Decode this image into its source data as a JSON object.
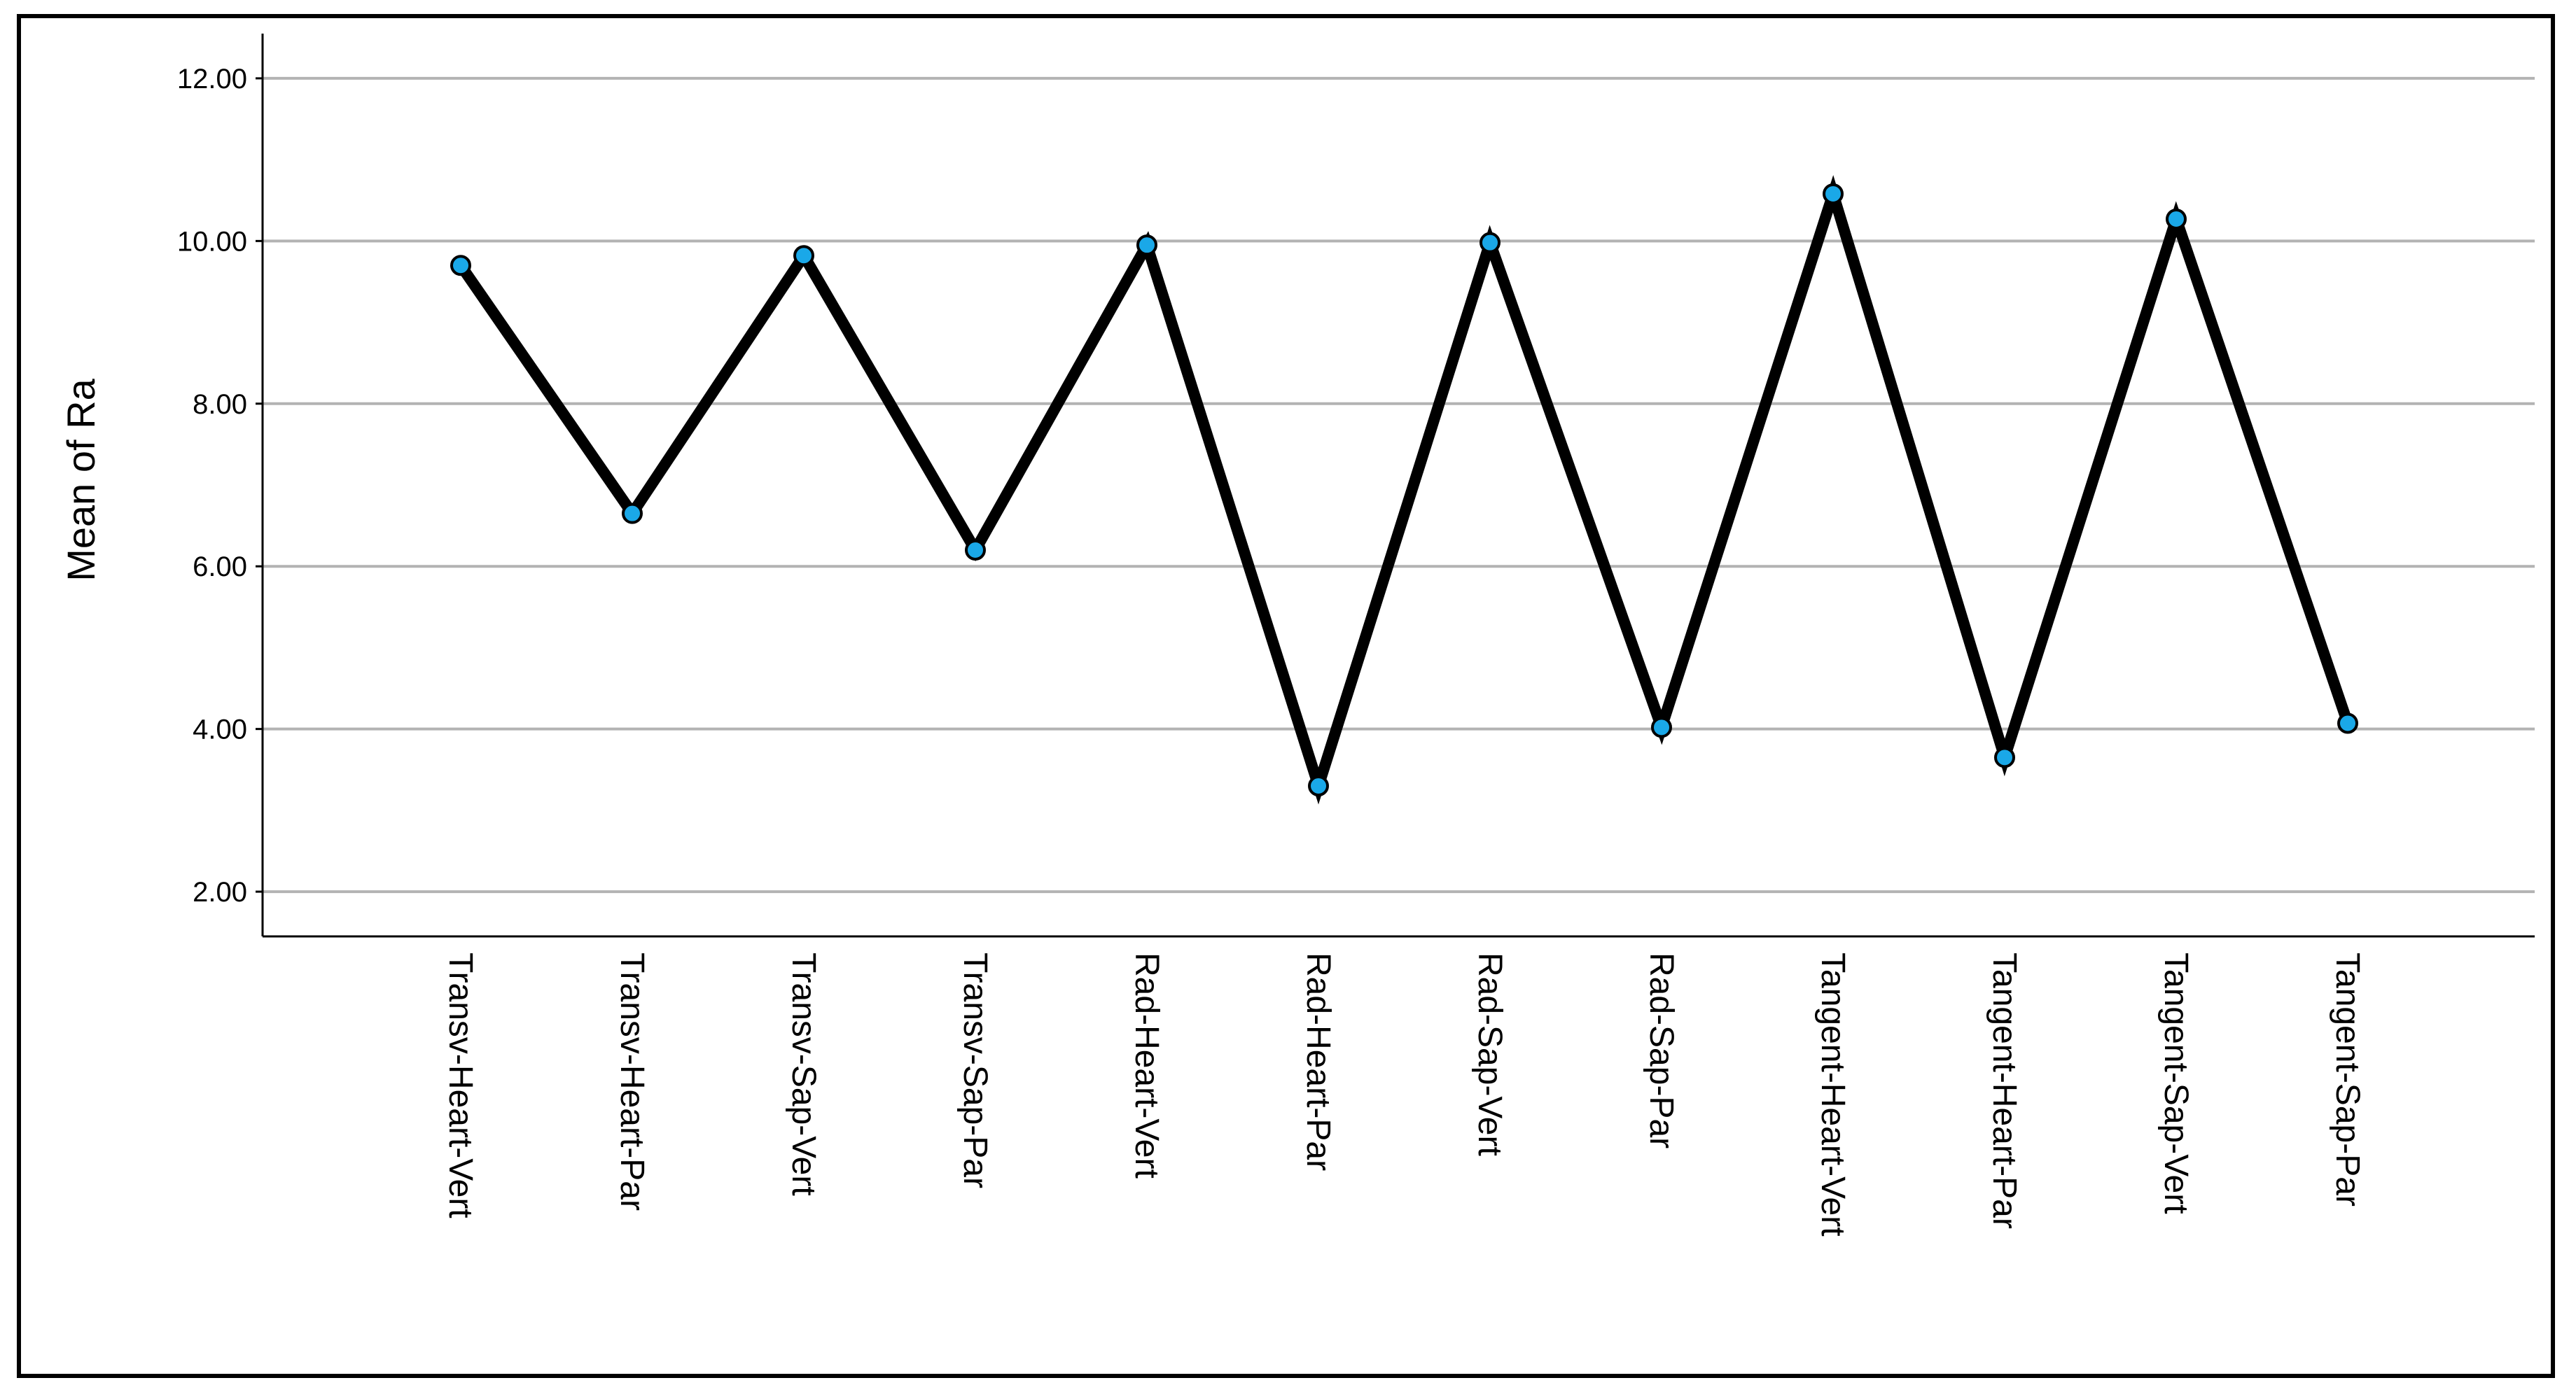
{
  "chart_data": {
    "type": "line",
    "title": "",
    "xlabel": "",
    "ylabel": "Mean of Ra",
    "ylim": [
      1.45,
      12.55
    ],
    "y_ticks": [
      "2.00",
      "4.00",
      "6.00",
      "8.00",
      "10.00",
      "12.00"
    ],
    "y_tick_values": [
      2,
      4,
      6,
      8,
      10,
      12
    ],
    "grid": "horizontal",
    "categories": [
      "Transv-Heart-Vert",
      "Transv-Heart-Par",
      "Transv-Sap-Vert",
      "Transv-Sap-Par",
      "Rad-Heart-Vert",
      "Rad-Heart-Par",
      "Rad-Sap-Vert",
      "Rad-Sap-Par",
      "Tangent-Heart-Vert",
      "Tangent-Heart-Par",
      "Tangent-Sap-Vert",
      "Tangent-Sap-Par"
    ],
    "values": [
      9.7,
      6.65,
      9.82,
      6.2,
      9.95,
      3.3,
      9.98,
      4.02,
      10.58,
      3.65,
      10.27,
      4.07
    ],
    "colors": {
      "line": "#000000",
      "marker": "#1aa8e8",
      "grid": "#b3b3b3"
    }
  }
}
